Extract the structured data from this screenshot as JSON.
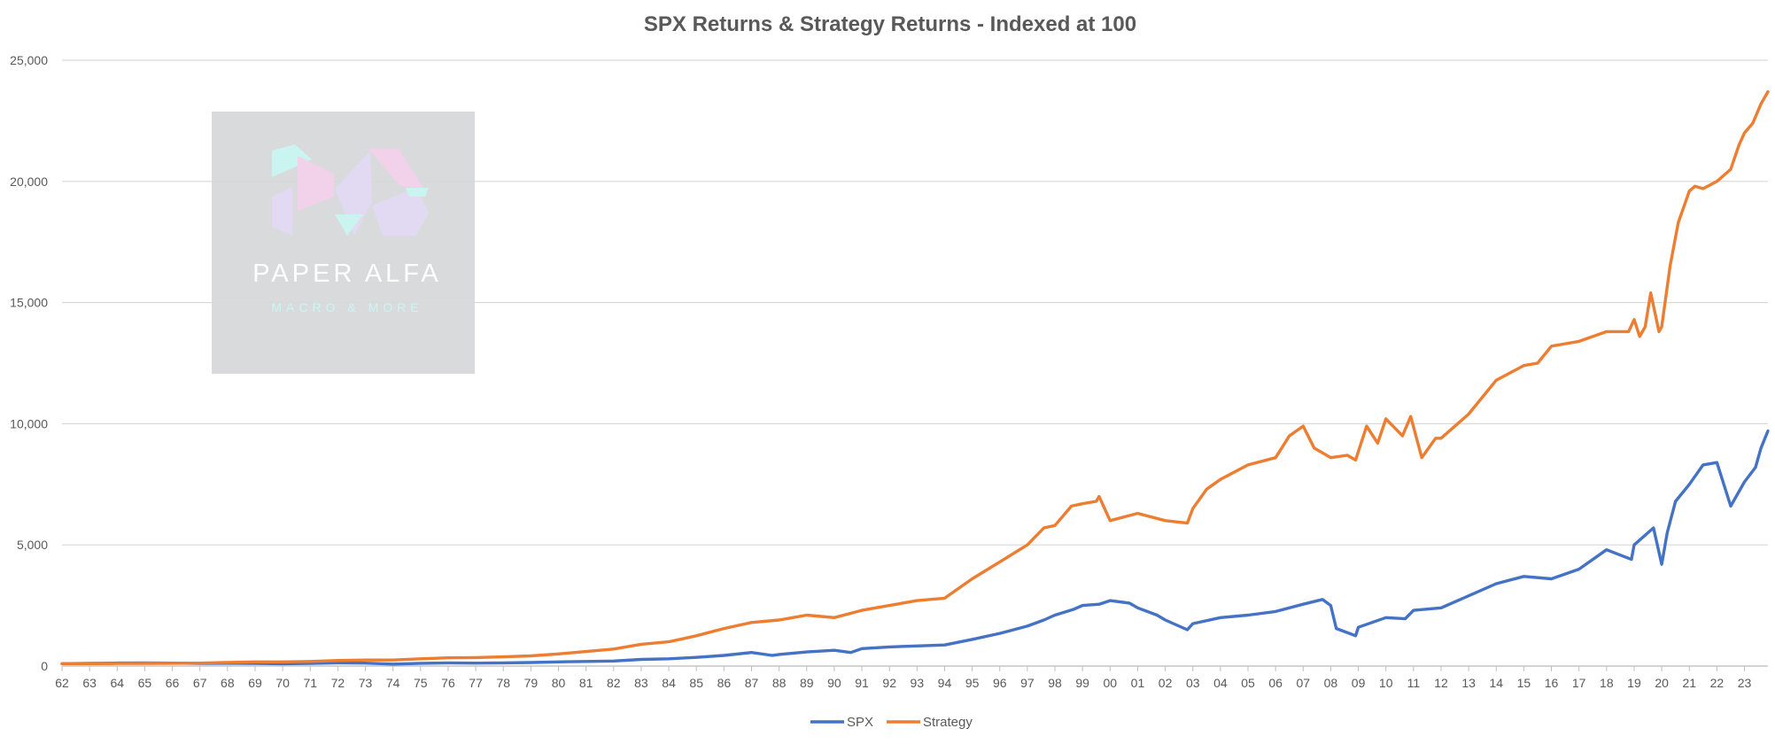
{
  "chart_data": {
    "type": "line",
    "title": "SPX Returns & Strategy Returns - Indexed at 100",
    "xlabel": "",
    "ylabel": "",
    "ylim": [
      0,
      25000
    ],
    "yticks": [
      0,
      5000,
      10000,
      15000,
      20000,
      25000
    ],
    "ytick_labels": [
      "0",
      "5,000",
      "10,000",
      "15,000",
      "20,000",
      "25,000"
    ],
    "xlim": [
      1962.0,
      2023.85
    ],
    "xtick_labels": [
      "62",
      "63",
      "64",
      "65",
      "66",
      "67",
      "68",
      "69",
      "70",
      "71",
      "72",
      "73",
      "74",
      "75",
      "76",
      "77",
      "78",
      "79",
      "80",
      "81",
      "82",
      "83",
      "84",
      "85",
      "86",
      "87",
      "88",
      "89",
      "90",
      "91",
      "92",
      "93",
      "94",
      "95",
      "96",
      "97",
      "98",
      "99",
      "00",
      "01",
      "02",
      "03",
      "04",
      "05",
      "06",
      "07",
      "08",
      "09",
      "10",
      "11",
      "12",
      "13",
      "14",
      "15",
      "16",
      "17",
      "18",
      "19",
      "20",
      "21",
      "22",
      "23"
    ],
    "grid": "horizontal",
    "legend_position": "bottom",
    "series": [
      {
        "name": "SPX",
        "color": "#4472C4",
        "x": [
          1962,
          1963,
          1964,
          1965,
          1966,
          1967,
          1968,
          1969,
          1970,
          1971,
          1972,
          1973,
          1974,
          1975,
          1976,
          1977,
          1978,
          1979,
          1980,
          1981,
          1982,
          1983,
          1984,
          1985,
          1986,
          1987,
          1987.75,
          1988,
          1989,
          1990,
          1990.6,
          1991,
          1992,
          1993,
          1994,
          1995,
          1996,
          1997,
          1997.6,
          1998,
          1998.7,
          1999,
          1999.6,
          2000,
          2000.7,
          2001,
          2001.7,
          2002,
          2002.8,
          2003,
          2004,
          2005,
          2006,
          2007,
          2007.7,
          2008,
          2008.2,
          2008.9,
          2009,
          2010,
          2010.7,
          2011,
          2012,
          2013,
          2014,
          2015,
          2016,
          2017,
          2018,
          2018.9,
          2019,
          2019.7,
          2020,
          2020.2,
          2020.5,
          2021,
          2021.5,
          2022,
          2022.5,
          2022.8,
          2023,
          2023.4,
          2023.6,
          2023.85
        ],
        "values": [
          100,
          108,
          125,
          130,
          122,
          110,
          115,
          105,
          95,
          110,
          130,
          120,
          80,
          115,
          130,
          120,
          130,
          145,
          170,
          190,
          210,
          275,
          300,
          360,
          440,
          560,
          440,
          480,
          580,
          650,
          560,
          720,
          790,
          830,
          870,
          1100,
          1350,
          1650,
          1900,
          2100,
          2350,
          2500,
          2550,
          2700,
          2600,
          2400,
          2100,
          1900,
          1500,
          1750,
          2000,
          2100,
          2250,
          2550,
          2750,
          2500,
          1550,
          1250,
          1600,
          2000,
          1950,
          2300,
          2400,
          2900,
          3400,
          3700,
          3600,
          4000,
          4800,
          4400,
          5000,
          5700,
          4200,
          5500,
          6800,
          7500,
          8300,
          8400,
          6600,
          7200,
          7600,
          8200,
          9000,
          9700
        ]
      },
      {
        "name": "Strategy",
        "color": "#ED7D31",
        "x": [
          1962,
          1963,
          1964,
          1965,
          1966,
          1967,
          1968,
          1969,
          1970,
          1971,
          1972,
          1973,
          1974,
          1975,
          1976,
          1977,
          1978,
          1979,
          1980,
          1981,
          1982,
          1983,
          1984,
          1985,
          1986,
          1987,
          1988,
          1989,
          1990,
          1991,
          1992,
          1993,
          1994,
          1995,
          1996,
          1997,
          1997.6,
          1998,
          1998.6,
          1999,
          1999.5,
          1999.6,
          2000,
          2001,
          2002,
          2002.8,
          2003,
          2003.5,
          2004,
          2005,
          2006,
          2006.5,
          2007,
          2007.4,
          2008,
          2008.6,
          2008.9,
          2009.3,
          2009.7,
          2010,
          2010.6,
          2010.9,
          2011.3,
          2011.8,
          2012,
          2013,
          2014,
          2015,
          2015.5,
          2016,
          2017,
          2018,
          2018.5,
          2018.8,
          2019,
          2019.2,
          2019.4,
          2019.6,
          2019.9,
          2020,
          2020.3,
          2020.6,
          2021,
          2021.2,
          2021.5,
          2022,
          2022.5,
          2022.8,
          2023,
          2023.3,
          2023.6,
          2023.85
        ],
        "values": [
          100,
          100,
          105,
          110,
          115,
          120,
          150,
          170,
          170,
          190,
          230,
          250,
          250,
          300,
          340,
          350,
          380,
          420,
          500,
          600,
          700,
          900,
          1000,
          1250,
          1550,
          1800,
          1900,
          2100,
          2000,
          2300,
          2500,
          2700,
          2800,
          3600,
          4300,
          5000,
          5700,
          5800,
          6600,
          6700,
          6800,
          7000,
          6000,
          6300,
          6000,
          5900,
          6500,
          7300,
          7700,
          8300,
          8600,
          9500,
          9900,
          9000,
          8600,
          8700,
          8500,
          9900,
          9200,
          10200,
          9500,
          10300,
          8600,
          9400,
          9400,
          10400,
          11800,
          12400,
          12500,
          13200,
          13400,
          13800,
          13800,
          13800,
          14300,
          13600,
          14000,
          15400,
          13800,
          14000,
          16500,
          18300,
          19600,
          19800,
          19700,
          20000,
          20500,
          21500,
          22000,
          22400,
          23200,
          23700
        ]
      }
    ],
    "watermark": {
      "title": "PAPER ALFA",
      "subtitle": "MACRO & MORE"
    }
  }
}
